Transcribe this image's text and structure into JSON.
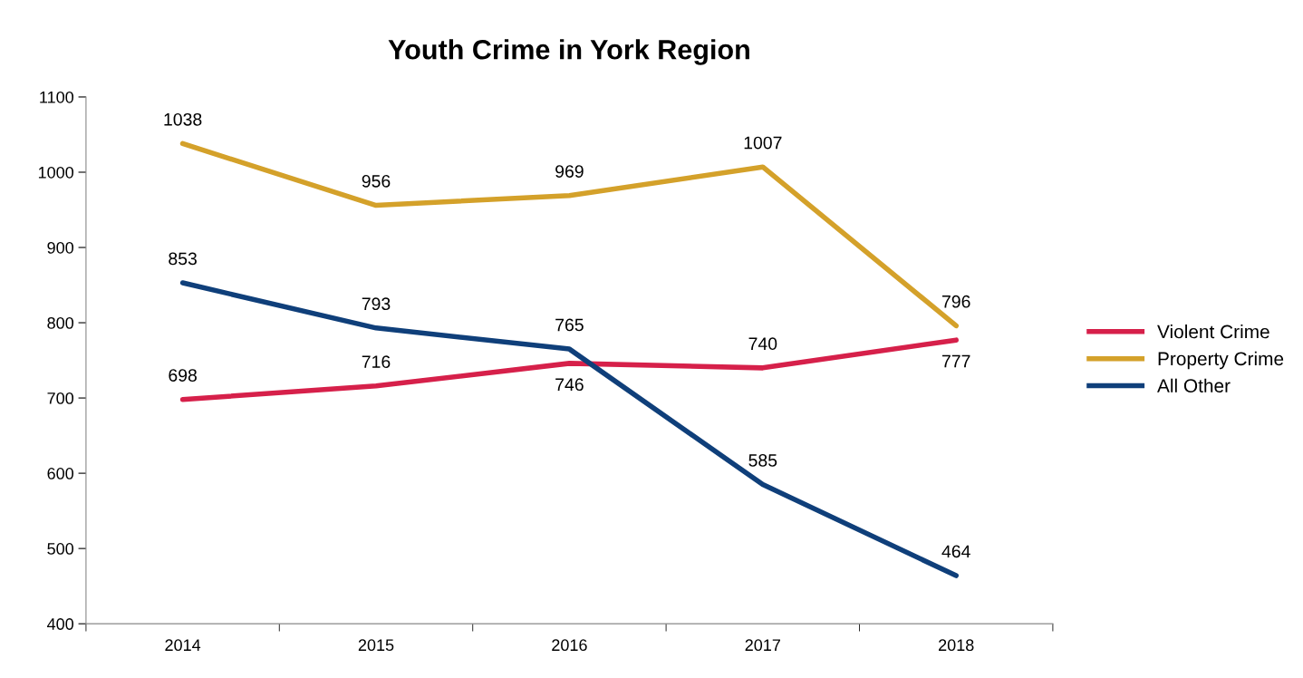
{
  "chart_data": {
    "type": "line",
    "title": "Youth Crime in York Region",
    "categories": [
      "2014",
      "2015",
      "2016",
      "2017",
      "2018"
    ],
    "series": [
      {
        "name": "Violent Crime",
        "color": "#d6204a",
        "values": [
          698,
          716,
          746,
          740,
          777
        ]
      },
      {
        "name": "Property Crime",
        "color": "#d4a12a",
        "values": [
          1038,
          956,
          969,
          1007,
          796
        ]
      },
      {
        "name": "All Other",
        "color": "#0f3f7a",
        "values": [
          853,
          793,
          765,
          585,
          464
        ]
      }
    ],
    "ylim": [
      400,
      1100
    ],
    "yticks": [
      400,
      500,
      600,
      700,
      800,
      900,
      1000,
      1100
    ],
    "data_labels": true,
    "legend": "right",
    "grid": false,
    "marker": "none",
    "line_style": "solid"
  }
}
